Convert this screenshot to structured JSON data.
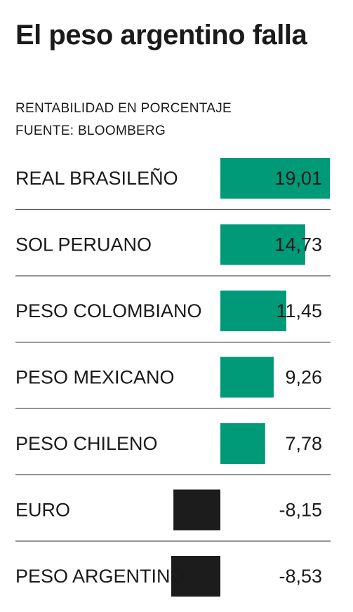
{
  "header": {
    "title": "El peso argentino falla",
    "subtitle": "RENTABILIDAD EN PORCENTAJE",
    "source": "FUENTE: BLOOMBERG"
  },
  "colors": {
    "positive": "#009a78",
    "negative": "#1c1c1c",
    "divider": "#555555",
    "text": "#1a1a1a"
  },
  "chart_data": {
    "type": "bar",
    "orientation": "horizontal",
    "title": "El peso argentino falla",
    "subtitle": "RENTABILIDAD EN PORCENTAJE",
    "source": "FUENTE: BLOOMBERG",
    "categories": [
      "REAL BRASILEÑO",
      "SOL PERUANO",
      "PESO COLOMBIANO",
      "PESO MEXICANO",
      "PESO CHILENO",
      "EURO",
      "PESO ARGENTINO"
    ],
    "values": [
      19.01,
      14.73,
      11.45,
      9.26,
      7.78,
      -8.15,
      -8.53
    ],
    "value_labels": [
      "19,01",
      "14,73",
      "11,45",
      "9,26",
      "7,78",
      "-8,15",
      "-8,53"
    ],
    "xlim": [
      -8.53,
      19.01
    ],
    "grid": false,
    "legend": "none"
  }
}
